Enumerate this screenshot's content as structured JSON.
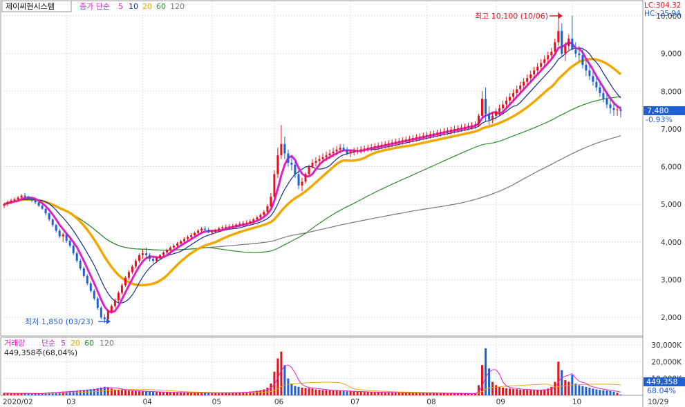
{
  "header": {
    "stock_name": "제이씨현시스템",
    "ma_label": "종가 단순",
    "ma_periods": [
      "5",
      "10",
      "20",
      "60",
      "120"
    ],
    "lc": "LC:304.32",
    "hc": "HC:-25.94"
  },
  "colors": {
    "up": "#e8111b",
    "down": "#1f5fd6",
    "ma5": "#e020c8",
    "ma10": "#102a8c",
    "ma20": "#f0a800",
    "ma60": "#2a8a2a",
    "ma120": "#777777",
    "grid": "#dcdcdc",
    "axis": "#555555"
  },
  "annotations": {
    "high": "최고 10,100 (10/06)",
    "low": "최저 1,850 (03/23)"
  },
  "current": {
    "price": "7,480",
    "change": "-0.93%"
  },
  "volume_header": {
    "title": "거래량",
    "ma_label": "단순",
    "ma_periods": [
      "5",
      "20",
      "60",
      "120"
    ],
    "value_line": "449,358주(68,04%)"
  },
  "volume_current": {
    "value": "449,358",
    "pct": "68.04%"
  },
  "chart_data": {
    "type": "candlestick",
    "price_axis": {
      "ticks": [
        2000,
        3000,
        4000,
        5000,
        6000,
        7000,
        8000,
        9000,
        10000
      ],
      "tick_labels": [
        "2,000",
        "3,000",
        "4,000",
        "5,000",
        "6,000",
        "7,000",
        "8,000",
        "9,000",
        "10,000"
      ]
    },
    "volume_axis": {
      "ticks": [
        10000,
        20000,
        30000
      ],
      "tick_labels": [
        "10,000K",
        "20,000K",
        "30,000K"
      ]
    },
    "x_axis": {
      "labels": [
        "2020/02",
        "03",
        "04",
        "05",
        "06",
        "07",
        "08",
        "09",
        "10",
        "10/29"
      ],
      "label_index": [
        0,
        18,
        40,
        60,
        78,
        100,
        122,
        142,
        164,
        189
      ]
    },
    "ohlcv": [
      [
        4960,
        5040,
        4900,
        5000,
        1300
      ],
      [
        5000,
        5100,
        4950,
        5060,
        1200
      ],
      [
        5060,
        5150,
        5000,
        5100,
        1100
      ],
      [
        5100,
        5180,
        5060,
        5130,
        1000
      ],
      [
        5130,
        5220,
        5080,
        5180,
        1200
      ],
      [
        5180,
        5270,
        5130,
        5230,
        1300
      ],
      [
        5230,
        5300,
        5160,
        5200,
        1100
      ],
      [
        5200,
        5230,
        5120,
        5150,
        1000
      ],
      [
        5150,
        5180,
        5060,
        5100,
        900
      ],
      [
        5100,
        5130,
        5000,
        5050,
        1000
      ],
      [
        5050,
        5090,
        4930,
        4960,
        1200
      ],
      [
        4960,
        5000,
        4850,
        4880,
        1300
      ],
      [
        4880,
        4900,
        4700,
        4760,
        1500
      ],
      [
        4760,
        4780,
        4550,
        4600,
        1700
      ],
      [
        4600,
        4630,
        4400,
        4450,
        1800
      ],
      [
        4450,
        4480,
        4250,
        4300,
        1900
      ],
      [
        4300,
        4350,
        4100,
        4150,
        2100
      ],
      [
        4150,
        4250,
        4000,
        4200,
        2200
      ],
      [
        4200,
        4230,
        3980,
        4030,
        2300
      ],
      [
        4030,
        4080,
        3850,
        3900,
        2500
      ],
      [
        3900,
        3950,
        3650,
        3700,
        2600
      ],
      [
        3700,
        3750,
        3450,
        3500,
        2800
      ],
      [
        3500,
        3550,
        3250,
        3300,
        3000
      ],
      [
        3300,
        3350,
        3050,
        3100,
        3200
      ],
      [
        3100,
        3150,
        2850,
        2900,
        3400
      ],
      [
        2900,
        2950,
        2650,
        2700,
        3600
      ],
      [
        2700,
        2750,
        2450,
        2500,
        3800
      ],
      [
        2500,
        2550,
        2200,
        2250,
        4200
      ],
      [
        2250,
        2300,
        1950,
        2000,
        4600
      ],
      [
        2000,
        2080,
        1850,
        1950,
        5000
      ],
      [
        1950,
        2200,
        1900,
        2150,
        4800
      ],
      [
        2150,
        2350,
        2100,
        2300,
        4000
      ],
      [
        2300,
        2500,
        2250,
        2450,
        3500
      ],
      [
        2450,
        2700,
        2400,
        2650,
        3300
      ],
      [
        2650,
        2900,
        2600,
        2850,
        3100
      ],
      [
        2850,
        3100,
        2800,
        3050,
        3000
      ],
      [
        3050,
        3250,
        3000,
        3200,
        2800
      ],
      [
        3200,
        3400,
        3150,
        3350,
        2600
      ],
      [
        3350,
        3550,
        3300,
        3500,
        2500
      ],
      [
        3500,
        3700,
        3450,
        3650,
        2400
      ],
      [
        3650,
        3800,
        3550,
        3700,
        2300
      ],
      [
        3700,
        3850,
        3600,
        3650,
        2200
      ],
      [
        3650,
        3700,
        3480,
        3550,
        2100
      ],
      [
        3550,
        3620,
        3450,
        3500,
        2000
      ],
      [
        3500,
        3600,
        3450,
        3580,
        1900
      ],
      [
        3580,
        3680,
        3530,
        3650,
        1900
      ],
      [
        3650,
        3750,
        3600,
        3720,
        1800
      ],
      [
        3720,
        3820,
        3680,
        3790,
        1800
      ],
      [
        3790,
        3890,
        3740,
        3850,
        1700
      ],
      [
        3850,
        3950,
        3800,
        3900,
        1700
      ],
      [
        3900,
        4000,
        3850,
        3960,
        1600
      ],
      [
        3960,
        4060,
        3910,
        4020,
        1600
      ],
      [
        4020,
        4120,
        3970,
        4080,
        1600
      ],
      [
        4080,
        4180,
        4030,
        4130,
        1500
      ],
      [
        4130,
        4230,
        4080,
        4180,
        1500
      ],
      [
        4180,
        4280,
        4130,
        4240,
        1500
      ],
      [
        4240,
        4340,
        4190,
        4300,
        1400
      ],
      [
        4300,
        4400,
        4250,
        4350,
        1400
      ],
      [
        4350,
        4420,
        4280,
        4320,
        1300
      ],
      [
        4320,
        4380,
        4230,
        4250,
        1300
      ],
      [
        4250,
        4310,
        4180,
        4270,
        1300
      ],
      [
        4270,
        4350,
        4220,
        4320,
        1400
      ],
      [
        4320,
        4400,
        4280,
        4360,
        1400
      ],
      [
        4360,
        4440,
        4300,
        4390,
        1500
      ],
      [
        4390,
        4460,
        4330,
        4400,
        1500
      ],
      [
        4400,
        4470,
        4340,
        4410,
        1600
      ],
      [
        4410,
        4480,
        4350,
        4420,
        1600
      ],
      [
        4420,
        4500,
        4370,
        4460,
        1700
      ],
      [
        4460,
        4540,
        4400,
        4480,
        1800
      ],
      [
        4480,
        4560,
        4420,
        4500,
        1900
      ],
      [
        4500,
        4580,
        4440,
        4510,
        2000
      ],
      [
        4510,
        4600,
        4460,
        4550,
        2200
      ],
      [
        4550,
        4640,
        4490,
        4600,
        2400
      ],
      [
        4600,
        4700,
        4550,
        4650,
        2700
      ],
      [
        4650,
        4760,
        4600,
        4720,
        3000
      ],
      [
        4720,
        4850,
        4680,
        4800,
        3500
      ],
      [
        4800,
        5000,
        4760,
        4950,
        4500
      ],
      [
        4950,
        5300,
        4900,
        5200,
        7000
      ],
      [
        5200,
        5900,
        5150,
        5800,
        14000
      ],
      [
        5800,
        6500,
        5700,
        6300,
        22000
      ],
      [
        6300,
        7100,
        6200,
        6600,
        26000
      ],
      [
        6600,
        6800,
        6200,
        6350,
        18000
      ],
      [
        6350,
        6450,
        6000,
        6100,
        10000
      ],
      [
        6100,
        6250,
        5900,
        6050,
        7000
      ],
      [
        6050,
        6150,
        5700,
        5800,
        5500
      ],
      [
        5800,
        5900,
        5400,
        5500,
        5000
      ],
      [
        5500,
        5700,
        5350,
        5600,
        4500
      ],
      [
        5600,
        5850,
        5550,
        5800,
        4300
      ],
      [
        5800,
        6050,
        5750,
        6000,
        4200
      ],
      [
        6000,
        6200,
        5950,
        6100,
        4000
      ],
      [
        6100,
        6250,
        6000,
        6150,
        3500
      ],
      [
        6150,
        6300,
        6050,
        6200,
        3300
      ],
      [
        6200,
        6350,
        6100,
        6250,
        3100
      ],
      [
        6250,
        6400,
        6150,
        6300,
        3000
      ],
      [
        6300,
        6450,
        6200,
        6350,
        2900
      ],
      [
        6350,
        6500,
        6250,
        6400,
        2800
      ],
      [
        6400,
        6550,
        6300,
        6450,
        2700
      ],
      [
        6450,
        6600,
        6350,
        6500,
        2600
      ],
      [
        6500,
        6600,
        6400,
        6450,
        2500
      ],
      [
        6450,
        6520,
        6300,
        6350,
        2400
      ],
      [
        6350,
        6450,
        6250,
        6400,
        2300
      ],
      [
        6400,
        6500,
        6300,
        6420,
        2200
      ],
      [
        6420,
        6520,
        6330,
        6440,
        2100
      ],
      [
        6440,
        6540,
        6350,
        6460,
        2000
      ],
      [
        6460,
        6560,
        6370,
        6480,
        2000
      ],
      [
        6480,
        6580,
        6390,
        6500,
        1900
      ],
      [
        6500,
        6600,
        6400,
        6520,
        1900
      ],
      [
        6520,
        6620,
        6420,
        6540,
        1800
      ],
      [
        6540,
        6640,
        6440,
        6560,
        1800
      ],
      [
        6560,
        6660,
        6460,
        6580,
        1700
      ],
      [
        6580,
        6680,
        6480,
        6600,
        1700
      ],
      [
        6600,
        6700,
        6500,
        6620,
        1600
      ],
      [
        6620,
        6720,
        6520,
        6640,
        1600
      ],
      [
        6640,
        6740,
        6540,
        6660,
        1500
      ],
      [
        6660,
        6760,
        6560,
        6680,
        1500
      ],
      [
        6680,
        6780,
        6580,
        6700,
        1500
      ],
      [
        6700,
        6800,
        6600,
        6720,
        1400
      ],
      [
        6720,
        6820,
        6620,
        6740,
        1400
      ],
      [
        6740,
        6840,
        6640,
        6760,
        1400
      ],
      [
        6760,
        6860,
        6660,
        6780,
        1300
      ],
      [
        6780,
        6880,
        6680,
        6800,
        1300
      ],
      [
        6800,
        6900,
        6700,
        6820,
        1300
      ],
      [
        6820,
        6920,
        6720,
        6840,
        1300
      ],
      [
        6840,
        6940,
        6740,
        6860,
        1200
      ],
      [
        6860,
        6960,
        6760,
        6880,
        1200
      ],
      [
        6880,
        6980,
        6780,
        6900,
        1200
      ],
      [
        6900,
        7000,
        6800,
        6920,
        1200
      ],
      [
        6920,
        7020,
        6820,
        6940,
        1100
      ],
      [
        6940,
        7040,
        6840,
        6960,
        1100
      ],
      [
        6960,
        7060,
        6860,
        6980,
        1100
      ],
      [
        6980,
        7080,
        6880,
        7000,
        1100
      ],
      [
        7000,
        7100,
        6900,
        7020,
        1000
      ],
      [
        7020,
        7120,
        6920,
        7040,
        1000
      ],
      [
        7040,
        7140,
        6940,
        7060,
        1000
      ],
      [
        7060,
        7160,
        6960,
        7080,
        1000
      ],
      [
        7080,
        7180,
        6980,
        7100,
        1000
      ],
      [
        7100,
        7200,
        7000,
        7120,
        1100
      ],
      [
        7120,
        7400,
        7050,
        7350,
        6000
      ],
      [
        7350,
        8000,
        7300,
        7800,
        18000
      ],
      [
        7800,
        8100,
        7200,
        7400,
        28000
      ],
      [
        7400,
        7600,
        7100,
        7250,
        16000
      ],
      [
        7250,
        7450,
        7150,
        7350,
        8000
      ],
      [
        7350,
        7550,
        7250,
        7450,
        6000
      ],
      [
        7450,
        7650,
        7350,
        7550,
        5000
      ],
      [
        7550,
        7750,
        7450,
        7650,
        4500
      ],
      [
        7650,
        7850,
        7550,
        7750,
        4200
      ],
      [
        7750,
        7950,
        7650,
        7850,
        4000
      ],
      [
        7850,
        8050,
        7750,
        7950,
        3800
      ],
      [
        7950,
        8150,
        7850,
        8050,
        3600
      ],
      [
        8050,
        8250,
        7950,
        8150,
        3400
      ],
      [
        8150,
        8350,
        8050,
        8250,
        3300
      ],
      [
        8250,
        8450,
        8150,
        8350,
        3200
      ],
      [
        8350,
        8550,
        8250,
        8450,
        3100
      ],
      [
        8450,
        8650,
        8350,
        8550,
        3000
      ],
      [
        8550,
        8750,
        8450,
        8650,
        3000
      ],
      [
        8650,
        8850,
        8550,
        8750,
        3200
      ],
      [
        8750,
        8950,
        8650,
        8850,
        3500
      ],
      [
        8850,
        9050,
        8750,
        8950,
        4000
      ],
      [
        8950,
        9150,
        8850,
        9050,
        5000
      ],
      [
        9050,
        9400,
        8950,
        9300,
        8000
      ],
      [
        9300,
        10100,
        9200,
        9600,
        20000
      ],
      [
        9600,
        9800,
        8900,
        9000,
        15000
      ],
      [
        9000,
        9300,
        8800,
        9200,
        9000
      ],
      [
        9200,
        9500,
        9100,
        9400,
        8000
      ],
      [
        9400,
        10000,
        9300,
        9100,
        12000
      ],
      [
        9100,
        9300,
        8900,
        9000,
        7000
      ],
      [
        9000,
        9200,
        8800,
        8950,
        6000
      ],
      [
        8950,
        9100,
        8600,
        8700,
        5500
      ],
      [
        8700,
        8850,
        8400,
        8550,
        5000
      ],
      [
        8550,
        8700,
        8300,
        8400,
        4500
      ],
      [
        8400,
        8550,
        8150,
        8250,
        4000
      ],
      [
        8250,
        8400,
        8000,
        8100,
        3500
      ],
      [
        8100,
        8250,
        7850,
        7950,
        3200
      ],
      [
        7950,
        8100,
        7700,
        7800,
        3000
      ],
      [
        7800,
        7950,
        7550,
        7650,
        2800
      ],
      [
        7650,
        7800,
        7400,
        7550,
        2500
      ],
      [
        7550,
        7700,
        7350,
        7500,
        2200
      ],
      [
        7500,
        7600,
        7350,
        7520,
        1500
      ],
      [
        7520,
        7600,
        7300,
        7480,
        450
      ]
    ]
  }
}
